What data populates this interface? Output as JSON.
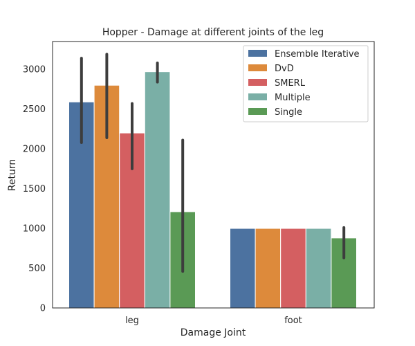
{
  "chart_data": {
    "type": "bar",
    "title": "Hopper - Damage at different joints of the leg",
    "xlabel": "Damage Joint",
    "ylabel": "Return",
    "categories": [
      "leg",
      "foot"
    ],
    "ylim": [
      0,
      3350
    ],
    "yticks": [
      0,
      500,
      1000,
      1500,
      2000,
      2500,
      3000
    ],
    "grid": false,
    "legend_position": "top-right",
    "series": [
      {
        "name": "Ensemble Iterative",
        "color": "#4c72a0",
        "values": [
          2590,
          1000
        ],
        "ci_low": [
          2080,
          null
        ],
        "ci_high": [
          3140,
          null
        ]
      },
      {
        "name": "DvD",
        "color": "#dd8a3b",
        "values": [
          2800,
          1000
        ],
        "ci_low": [
          2140,
          null
        ],
        "ci_high": [
          3190,
          null
        ]
      },
      {
        "name": "SMERL",
        "color": "#d45f61",
        "values": [
          2200,
          1000
        ],
        "ci_low": [
          1750,
          null
        ],
        "ci_high": [
          2570,
          null
        ]
      },
      {
        "name": "Multiple",
        "color": "#7aafa6",
        "values": [
          2970,
          1000
        ],
        "ci_low": [
          2840,
          null
        ],
        "ci_high": [
          3080,
          null
        ]
      },
      {
        "name": "Single",
        "color": "#5a9a55",
        "values": [
          1210,
          880
        ],
        "ci_low": [
          460,
          630
        ],
        "ci_high": [
          2110,
          1010
        ]
      }
    ]
  }
}
